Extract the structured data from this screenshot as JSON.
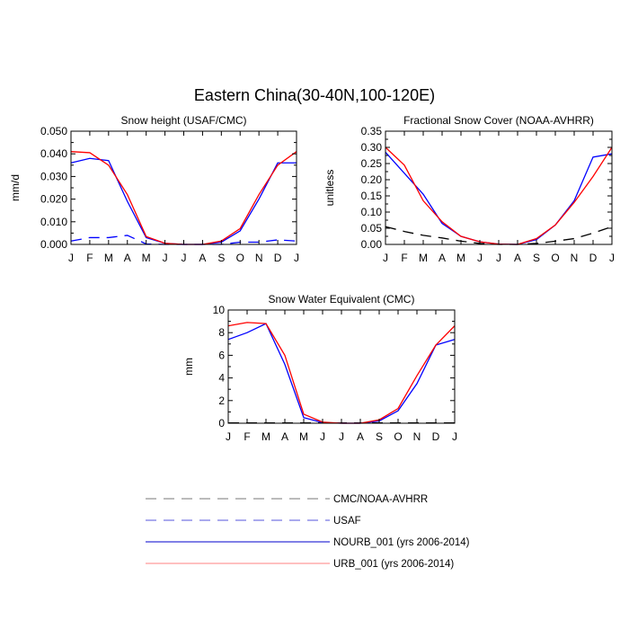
{
  "figure": {
    "title": "Eastern China(30-40N,100-120E)"
  },
  "chart_data": [
    {
      "type": "line",
      "title": "Snow height (USAF/CMC)",
      "xlabel": "",
      "ylabel": "mm/d",
      "x": [
        "J",
        "F",
        "M",
        "A",
        "M",
        "J",
        "J",
        "A",
        "S",
        "O",
        "N",
        "D",
        "J"
      ],
      "ylim": [
        0,
        0.05
      ],
      "yticks": [
        0,
        0.01,
        0.02,
        0.03,
        0.04,
        0.05
      ],
      "yticklabels": [
        "0.000",
        "0.010",
        "0.020",
        "0.030",
        "0.040",
        "0.050"
      ],
      "grid": false,
      "series": [
        {
          "name": "USAF",
          "color": "#0000ff",
          "dash": "dashed",
          "values": [
            0.0015,
            0.003,
            0.003,
            0.004,
            0.0002,
            0.0,
            0.0,
            0.0,
            0.0,
            0.001,
            0.001,
            0.002,
            0.0015
          ]
        },
        {
          "name": "NOURB_001 (yrs 2006-2014)",
          "color": "#0000ff",
          "dash": "solid",
          "values": [
            0.036,
            0.038,
            0.037,
            0.019,
            0.003,
            0.0005,
            0.0,
            0.0,
            0.001,
            0.006,
            0.02,
            0.036,
            0.036
          ]
        },
        {
          "name": "URB_001 (yrs 2006-2014)",
          "color": "#ff0000",
          "dash": "solid",
          "values": [
            0.041,
            0.0405,
            0.035,
            0.022,
            0.0035,
            0.0005,
            0.0,
            0.0,
            0.0015,
            0.007,
            0.022,
            0.035,
            0.041
          ]
        }
      ]
    },
    {
      "type": "line",
      "title": "Fractional Snow Cover (NOAA-AVHRR)",
      "xlabel": "",
      "ylabel": "unitless",
      "x": [
        "J",
        "F",
        "M",
        "A",
        "M",
        "J",
        "J",
        "A",
        "S",
        "O",
        "N",
        "D",
        "J"
      ],
      "ylim": [
        0,
        0.35
      ],
      "yticks": [
        0,
        0.05,
        0.1,
        0.15,
        0.2,
        0.25,
        0.3,
        0.35
      ],
      "yticklabels": [
        "0.00",
        "0.05",
        "0.10",
        "0.15",
        "0.20",
        "0.25",
        "0.30",
        "0.35"
      ],
      "grid": false,
      "series": [
        {
          "name": "CMC/NOAA-AVHRR",
          "color": "#000000",
          "dash": "dashed",
          "values": [
            0.055,
            0.04,
            0.028,
            0.02,
            0.01,
            0.003,
            0.0,
            0.0,
            0.003,
            0.01,
            0.018,
            0.035,
            0.055
          ]
        },
        {
          "name": "NOURB_001 (yrs 2006-2014)",
          "color": "#0000ff",
          "dash": "solid",
          "values": [
            0.285,
            0.22,
            0.155,
            0.065,
            0.025,
            0.008,
            0.001,
            0.0,
            0.015,
            0.06,
            0.135,
            0.27,
            0.28
          ]
        },
        {
          "name": "URB_001 (yrs 2006-2014)",
          "color": "#ff0000",
          "dash": "solid",
          "values": [
            0.3,
            0.245,
            0.135,
            0.07,
            0.025,
            0.008,
            0.001,
            0.0,
            0.018,
            0.06,
            0.13,
            0.21,
            0.3
          ]
        }
      ]
    },
    {
      "type": "line",
      "title": "Snow Water Equivalent (CMC)",
      "xlabel": "",
      "ylabel": "mm",
      "x": [
        "J",
        "F",
        "M",
        "A",
        "M",
        "J",
        "J",
        "A",
        "S",
        "O",
        "N",
        "D",
        "J"
      ],
      "ylim": [
        0,
        10
      ],
      "yticks": [
        0,
        2,
        4,
        6,
        8,
        10
      ],
      "yticklabels": [
        "0",
        "2",
        "4",
        "6",
        "8",
        "10"
      ],
      "grid": false,
      "series": [
        {
          "name": "CMC/NOAA-AVHRR",
          "color": "#000000",
          "dash": "dashed",
          "values": [
            0.03,
            0.03,
            0.03,
            0.03,
            0.03,
            0.03,
            0.03,
            0.03,
            0.03,
            0.03,
            0.03,
            0.03,
            0.03
          ]
        },
        {
          "name": "NOURB_001 (yrs 2006-2014)",
          "color": "#0000ff",
          "dash": "solid",
          "values": [
            7.4,
            8.0,
            8.8,
            5.2,
            0.5,
            0.05,
            0.0,
            0.0,
            0.2,
            1.1,
            3.5,
            6.9,
            7.4
          ]
        },
        {
          "name": "URB_001 (yrs 2006-2014)",
          "color": "#ff0000",
          "dash": "solid",
          "values": [
            8.6,
            8.9,
            8.8,
            6.0,
            0.8,
            0.1,
            0.0,
            0.0,
            0.3,
            1.3,
            4.2,
            6.9,
            8.6
          ]
        }
      ]
    }
  ],
  "legend": {
    "entries": [
      {
        "label": "CMC/NOAA-AVHRR",
        "color": "#777777",
        "dash": "dashed"
      },
      {
        "label": "USAF",
        "color": "#5555dd",
        "dash": "dashed"
      },
      {
        "label": "NOURB_001 (yrs 2006-2014)",
        "color": "#0000cc",
        "dash": "solid"
      },
      {
        "label": "URB_001 (yrs 2006-2014)",
        "color": "#ff8080",
        "dash": "solid"
      }
    ]
  }
}
